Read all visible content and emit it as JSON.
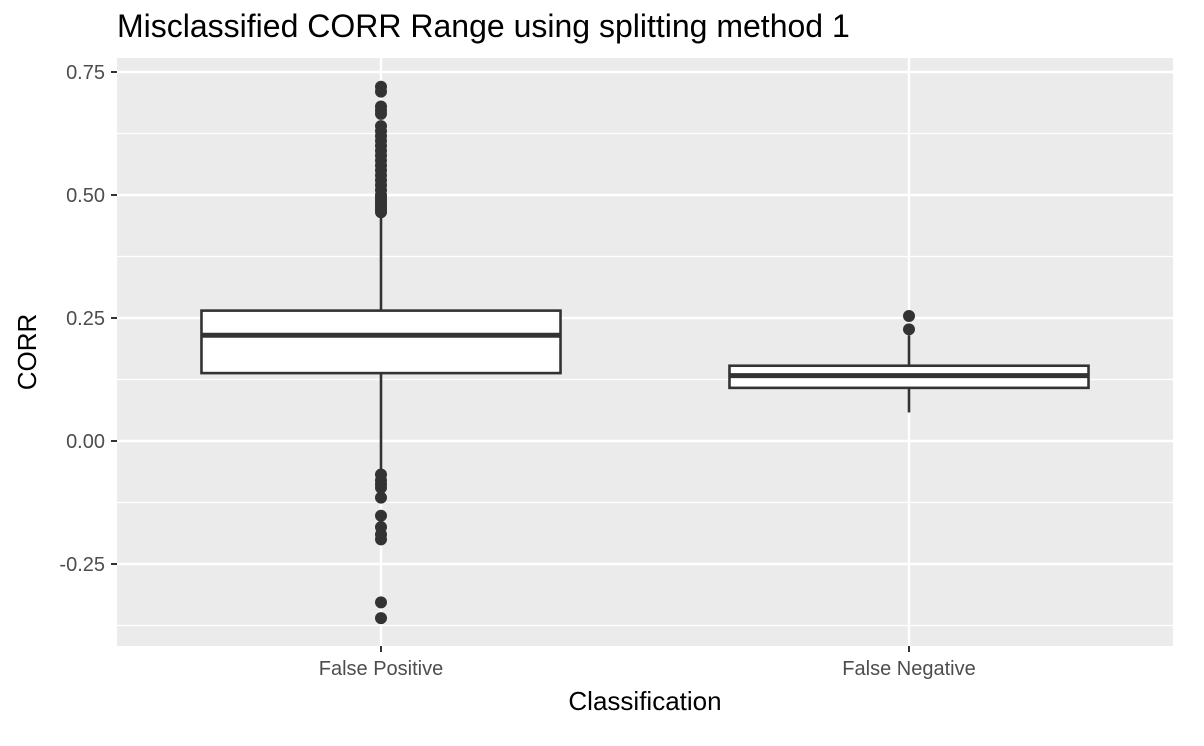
{
  "chart_data": {
    "type": "boxplot",
    "title": "Misclassified CORR Range using splitting method 1",
    "xlabel": "Classification",
    "ylabel": "CORR",
    "ylim": [
      -0.375,
      0.78
    ],
    "yticks": [
      -0.25,
      0.0,
      0.25,
      0.5,
      0.75
    ],
    "ytick_labels": [
      "-0.25",
      "0.00",
      "0.25",
      "0.50",
      "0.75"
    ],
    "grid": true,
    "categories": [
      "False Positive",
      "False Negative"
    ],
    "boxes": [
      {
        "category": "False Positive",
        "q1": 0.138,
        "median": 0.215,
        "q3": 0.265,
        "whisker_low": -0.06,
        "whisker_high": 0.462,
        "outliers": [
          0.72,
          0.71,
          0.68,
          0.672,
          0.665,
          0.64,
          0.63,
          0.62,
          0.61,
          0.6,
          0.59,
          0.58,
          0.57,
          0.56,
          0.55,
          0.54,
          0.53,
          0.52,
          0.51,
          0.5,
          0.495,
          0.49,
          0.485,
          0.48,
          0.475,
          0.47,
          0.465,
          -0.068,
          -0.08,
          -0.088,
          -0.095,
          -0.115,
          -0.152,
          -0.175,
          -0.19,
          -0.2,
          -0.328,
          -0.36
        ]
      },
      {
        "category": "False Negative",
        "q1": 0.108,
        "median": 0.133,
        "q3": 0.153,
        "whisker_low": 0.058,
        "whisker_high": 0.215,
        "outliers": [
          0.254,
          0.227
        ]
      }
    ],
    "colors": {
      "panel": "#EBEBEB",
      "grid": "#FFFFFF",
      "box_fill": "#FFFFFF",
      "box_line": "#333333",
      "axis_text": "#4D4D4D"
    }
  }
}
